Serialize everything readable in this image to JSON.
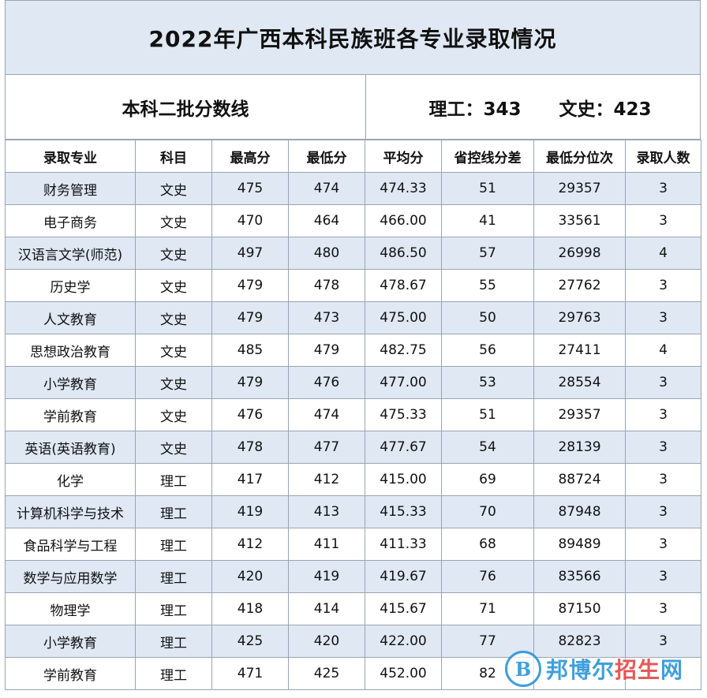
{
  "title": "2022年广西本科民族班各专业录取情况",
  "batch_label": "本科二批分数线",
  "science_cutoff": "理工：343",
  "arts_cutoff": "文史：423",
  "headers": [
    "录取专业",
    "科目",
    "最高分",
    "最低分",
    "平均分",
    "省控线分差",
    "最低分位次",
    "录取人数"
  ],
  "rows": [
    [
      "财务管理",
      "文史",
      "475",
      "474",
      "474.33",
      "51",
      "29357",
      "3"
    ],
    [
      "电子商务",
      "文史",
      "470",
      "464",
      "466.00",
      "41",
      "33561",
      "3"
    ],
    [
      "汉语言文学(师范)",
      "文史",
      "497",
      "480",
      "486.50",
      "57",
      "26998",
      "4"
    ],
    [
      "历史学",
      "文史",
      "479",
      "478",
      "478.67",
      "55",
      "27762",
      "3"
    ],
    [
      "人文教育",
      "文史",
      "479",
      "473",
      "475.00",
      "50",
      "29763",
      "3"
    ],
    [
      "思想政治教育",
      "文史",
      "485",
      "479",
      "482.75",
      "56",
      "27411",
      "4"
    ],
    [
      "小学教育",
      "文史",
      "479",
      "476",
      "477.00",
      "53",
      "28554",
      "3"
    ],
    [
      "学前教育",
      "文史",
      "476",
      "474",
      "475.33",
      "51",
      "29357",
      "3"
    ],
    [
      "英语(英语教育)",
      "文史",
      "478",
      "477",
      "477.67",
      "54",
      "28139",
      "3"
    ],
    [
      "化学",
      "理工",
      "417",
      "412",
      "415.00",
      "69",
      "88724",
      "3"
    ],
    [
      "计算机科学与技术",
      "理工",
      "419",
      "413",
      "415.33",
      "70",
      "87948",
      "3"
    ],
    [
      "食品科学与工程",
      "理工",
      "412",
      "411",
      "411.33",
      "68",
      "89489",
      "3"
    ],
    [
      "数学与应用数学",
      "理工",
      "420",
      "419",
      "419.67",
      "76",
      "83566",
      "3"
    ],
    [
      "物理学",
      "理工",
      "418",
      "414",
      "415.67",
      "71",
      "87150",
      "3"
    ],
    [
      "小学教育",
      "理工",
      "425",
      "420",
      "422.00",
      "77",
      "82823",
      "3"
    ],
    [
      "学前教育",
      "理工",
      "471",
      "425",
      "452.00",
      "82",
      "",
      ""
    ]
  ],
  "watermark": {
    "logo_letter": "B",
    "text_blue": "邦博尔",
    "text_red": "招生",
    "text_tail": "网",
    "color": "#1d8fd8"
  }
}
